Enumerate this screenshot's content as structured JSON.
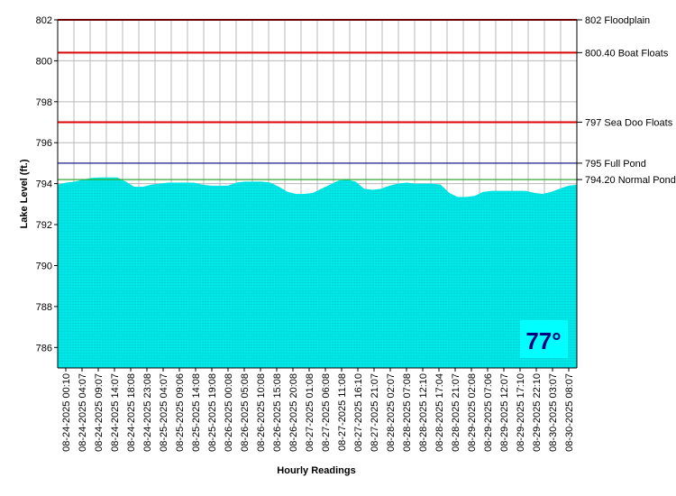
{
  "chart_data": {
    "type": "area",
    "xlabel": "Hourly Readings",
    "ylabel": "Lake Level (ft.)",
    "ylim": [
      785,
      802
    ],
    "y_ticks": [
      786,
      788,
      790,
      792,
      794,
      796,
      798,
      800,
      802
    ],
    "x_ticks": [
      "08-24-2025 00:10",
      "08-24-2025 04:07",
      "08-24-2025 09:07",
      "08-24-2025 14:07",
      "08-24-2025 18:08",
      "08-24-2025 23:08",
      "08-25-2025 04:07",
      "08-25-2025 09:06",
      "08-25-2025 14:08",
      "08-25-2025 19:08",
      "08-26-2025 00:08",
      "08-26-2025 05:08",
      "08-26-2025 10:08",
      "08-26-2025 15:08",
      "08-26-2025 20:08",
      "08-27-2025 01:08",
      "08-27-2025 06:08",
      "08-27-2025 11:08",
      "08-27-2025 16:10",
      "08-27-2025 21:07",
      "08-28-2025 02:07",
      "08-28-2025 07:08",
      "08-28-2025 12:10",
      "08-28-2025 17:04",
      "08-28-2025 21:07",
      "08-29-2025 02:08",
      "08-29-2025 07:06",
      "08-29-2025 12:07",
      "08-29-2025 17:10",
      "08-29-2025 22:10",
      "08-30-2025 03:07",
      "08-30-2025 08:07"
    ],
    "grid": true,
    "series_color": "#00e5e5",
    "reference_lines": [
      {
        "label": "802 Floodplain",
        "value": 802,
        "color": "#dd0000"
      },
      {
        "label": "800.40 Boat Floats",
        "value": 800.4,
        "color": "#dd0000"
      },
      {
        "label": "797 Sea Doo Floats",
        "value": 797,
        "color": "#dd0000"
      },
      {
        "label": "795 Full Pond",
        "value": 795,
        "color": "#000080"
      },
      {
        "label": "794.20 Normal Pond",
        "value": 794.2,
        "color": "#33aa33"
      }
    ],
    "level_profile": [
      [
        0,
        793.95
      ],
      [
        1,
        794.05
      ],
      [
        2,
        794.1
      ],
      [
        3,
        794.2
      ],
      [
        4,
        794.28
      ],
      [
        5,
        794.3
      ],
      [
        6,
        794.3
      ],
      [
        7,
        794.3
      ],
      [
        8,
        794.1
      ],
      [
        9,
        793.85
      ],
      [
        10,
        793.85
      ],
      [
        11,
        793.95
      ],
      [
        12,
        794.0
      ],
      [
        13,
        794.05
      ],
      [
        14,
        794.05
      ],
      [
        15,
        794.05
      ],
      [
        16,
        794.05
      ],
      [
        17,
        793.95
      ],
      [
        18,
        793.9
      ],
      [
        19,
        793.9
      ],
      [
        20,
        793.9
      ],
      [
        21,
        794.05
      ],
      [
        22,
        794.1
      ],
      [
        23,
        794.1
      ],
      [
        24,
        794.1
      ],
      [
        25,
        794.05
      ],
      [
        26,
        793.85
      ],
      [
        27,
        793.6
      ],
      [
        28,
        793.5
      ],
      [
        29,
        793.5
      ],
      [
        30,
        793.55
      ],
      [
        31,
        793.75
      ],
      [
        32,
        793.95
      ],
      [
        33,
        794.15
      ],
      [
        34,
        794.2
      ],
      [
        35,
        794.1
      ],
      [
        36,
        793.75
      ],
      [
        37,
        793.7
      ],
      [
        38,
        793.75
      ],
      [
        39,
        793.9
      ],
      [
        40,
        794.0
      ],
      [
        41,
        794.05
      ],
      [
        42,
        794.0
      ],
      [
        43,
        794.0
      ],
      [
        44,
        794.0
      ],
      [
        45,
        793.95
      ],
      [
        46,
        793.55
      ],
      [
        47,
        793.35
      ],
      [
        48,
        793.35
      ],
      [
        49,
        793.4
      ],
      [
        50,
        793.6
      ],
      [
        51,
        793.65
      ],
      [
        52,
        793.65
      ],
      [
        53,
        793.65
      ],
      [
        54,
        793.65
      ],
      [
        55,
        793.65
      ],
      [
        56,
        793.55
      ],
      [
        57,
        793.5
      ],
      [
        58,
        793.6
      ],
      [
        59,
        793.75
      ],
      [
        60,
        793.9
      ],
      [
        61,
        793.95
      ]
    ]
  },
  "temperature": {
    "text": "77°",
    "text_color": "#000080",
    "background": "#00ffff"
  }
}
